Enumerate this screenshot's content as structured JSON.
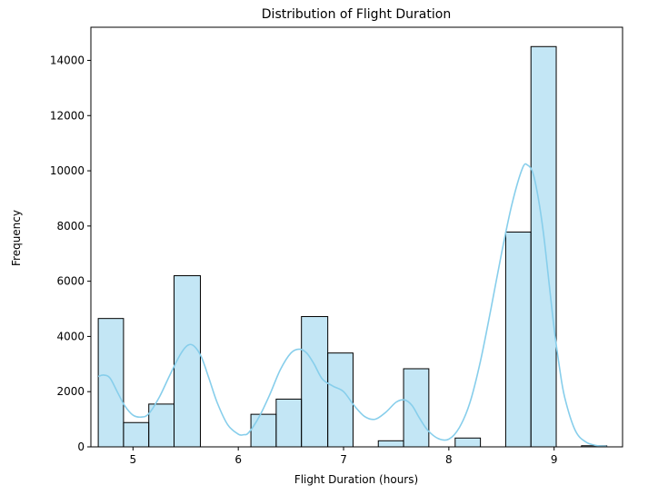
{
  "chart_data": {
    "type": "bar",
    "title": "Distribution of Flight Duration",
    "xlabel": "Flight Duration (hours)",
    "ylabel": "Frequency",
    "xlim": [
      4.6,
      9.65
    ],
    "ylim": [
      0,
      15200
    ],
    "xticks": [
      5,
      6,
      7,
      8,
      9
    ],
    "yticks": [
      0,
      2000,
      4000,
      6000,
      8000,
      10000,
      12000,
      14000
    ],
    "bar_color": "#87ceeb",
    "bar_edge_color": "#000000",
    "kde_color": "#87ceeb",
    "grid": false,
    "bins": [
      {
        "x0": 4.67,
        "x1": 4.91,
        "value": 4650
      },
      {
        "x0": 4.91,
        "x1": 5.15,
        "value": 880
      },
      {
        "x0": 5.15,
        "x1": 5.39,
        "value": 1550
      },
      {
        "x0": 5.39,
        "x1": 5.64,
        "value": 6200
      },
      {
        "x0": 5.64,
        "x1": 5.88,
        "value": 0
      },
      {
        "x0": 5.88,
        "x1": 6.12,
        "value": 0
      },
      {
        "x0": 6.12,
        "x1": 6.36,
        "value": 1180
      },
      {
        "x0": 6.36,
        "x1": 6.6,
        "value": 1730
      },
      {
        "x0": 6.6,
        "x1": 6.85,
        "value": 4720
      },
      {
        "x0": 6.85,
        "x1": 7.09,
        "value": 3400
      },
      {
        "x0": 7.09,
        "x1": 7.33,
        "value": 0
      },
      {
        "x0": 7.33,
        "x1": 7.57,
        "value": 220
      },
      {
        "x0": 7.57,
        "x1": 7.81,
        "value": 2830
      },
      {
        "x0": 7.81,
        "x1": 8.06,
        "value": 0
      },
      {
        "x0": 8.06,
        "x1": 8.3,
        "value": 320
      },
      {
        "x0": 8.3,
        "x1": 8.54,
        "value": 0
      },
      {
        "x0": 8.54,
        "x1": 8.78,
        "value": 7780
      },
      {
        "x0": 8.78,
        "x1": 9.02,
        "value": 14500
      },
      {
        "x0": 9.02,
        "x1": 9.26,
        "value": 0
      },
      {
        "x0": 9.26,
        "x1": 9.5,
        "value": 40
      }
    ],
    "kde": {
      "x": [
        4.67,
        4.72,
        4.78,
        4.85,
        4.92,
        5.0,
        5.08,
        5.15,
        5.25,
        5.35,
        5.45,
        5.52,
        5.58,
        5.65,
        5.72,
        5.8,
        5.9,
        6.0,
        6.05,
        6.1,
        6.2,
        6.3,
        6.4,
        6.5,
        6.58,
        6.65,
        6.72,
        6.8,
        6.9,
        7.0,
        7.1,
        7.2,
        7.3,
        7.4,
        7.5,
        7.58,
        7.65,
        7.72,
        7.8,
        7.9,
        8.0,
        8.1,
        8.2,
        8.3,
        8.4,
        8.5,
        8.6,
        8.7,
        8.75,
        8.8,
        8.85,
        8.9,
        8.95,
        9.0,
        9.05,
        9.1,
        9.2,
        9.3,
        9.4,
        9.5
      ],
      "y": [
        2550,
        2600,
        2500,
        2000,
        1500,
        1150,
        1080,
        1200,
        1800,
        2600,
        3350,
        3680,
        3650,
        3250,
        2500,
        1600,
        800,
        460,
        440,
        520,
        1100,
        1900,
        2800,
        3400,
        3540,
        3400,
        3000,
        2450,
        2200,
        2000,
        1500,
        1100,
        1000,
        1250,
        1620,
        1700,
        1500,
        1050,
        600,
        300,
        280,
        700,
        1600,
        3100,
        5000,
        7000,
        8800,
        10100,
        10200,
        9900,
        9000,
        7700,
        6000,
        4300,
        2900,
        1800,
        600,
        180,
        50,
        20
      ]
    }
  }
}
